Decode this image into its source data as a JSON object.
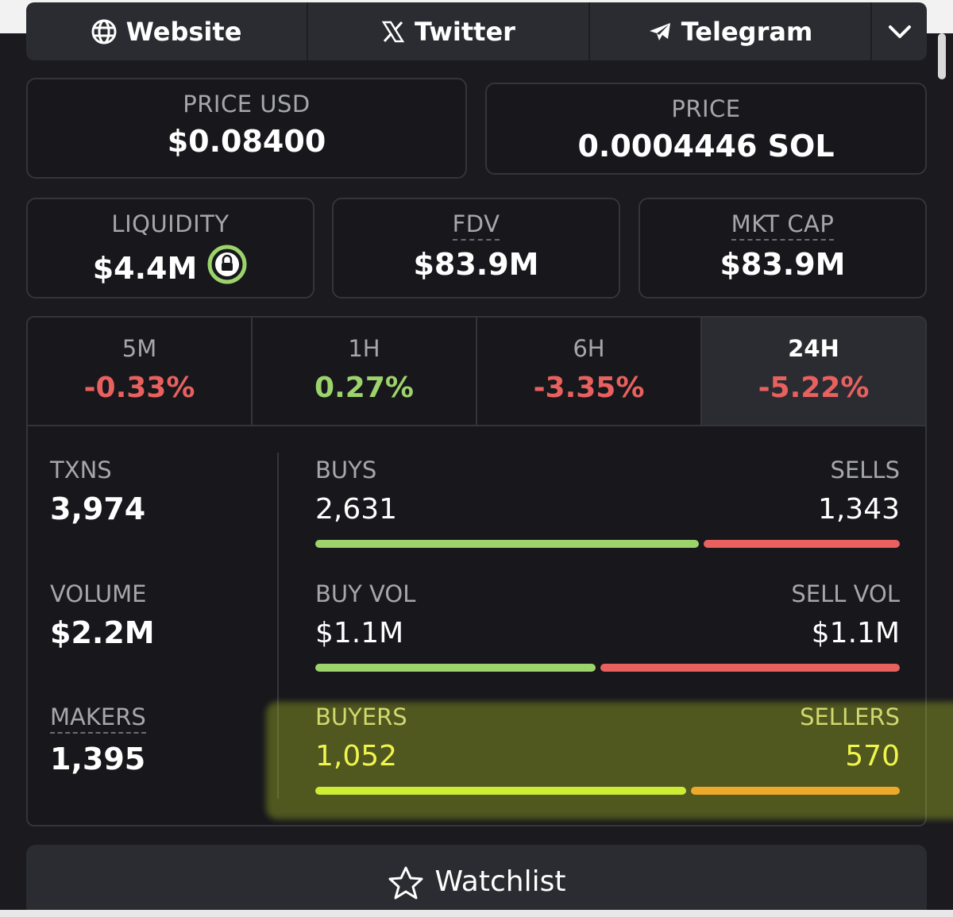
{
  "links": {
    "website": "Website",
    "twitter": "Twitter",
    "telegram": "Telegram"
  },
  "price_usd": {
    "label": "PRICE USD",
    "value": "$0.08400"
  },
  "price_sol": {
    "label": "PRICE",
    "value": "0.0004446 SOL"
  },
  "liquidity": {
    "label": "LIQUIDITY",
    "value": "$4.4M"
  },
  "fdv": {
    "label": "FDV",
    "value": "$83.9M"
  },
  "mkt_cap": {
    "label": "MKT CAP",
    "value": "$83.9M"
  },
  "tabs": [
    {
      "label": "5M",
      "change": "-0.33%"
    },
    {
      "label": "1H",
      "change": "0.27%"
    },
    {
      "label": "6H",
      "change": "-3.35%"
    },
    {
      "label": "24H",
      "change": "-5.22%"
    }
  ],
  "active_tab": "24H",
  "metrics": {
    "txns": {
      "label": "TXNS",
      "value": "3,974"
    },
    "volume": {
      "label": "VOLUME",
      "value": "$2.2M"
    },
    "makers": {
      "label": "MAKERS",
      "value": "1,395"
    }
  },
  "rows": {
    "txns": {
      "left_label": "BUYS",
      "left_value": "2,631",
      "right_label": "SELLS",
      "right_value": "1,343",
      "buy_fraction": 0.662
    },
    "volume": {
      "left_label": "BUY VOL",
      "left_value": "$1.1M",
      "right_label": "SELL VOL",
      "right_value": "$1.1M",
      "buy_fraction": 0.483
    },
    "makers": {
      "left_label": "BUYERS",
      "left_value": "1,052",
      "right_label": "SELLERS",
      "right_value": "570",
      "buy_fraction": 0.64
    }
  },
  "watchlist": {
    "label": "Watchlist"
  },
  "colors": {
    "positive": "#9dd36b",
    "negative": "#e8615f",
    "background": "#17171c",
    "highlight": "#e6ff28"
  }
}
